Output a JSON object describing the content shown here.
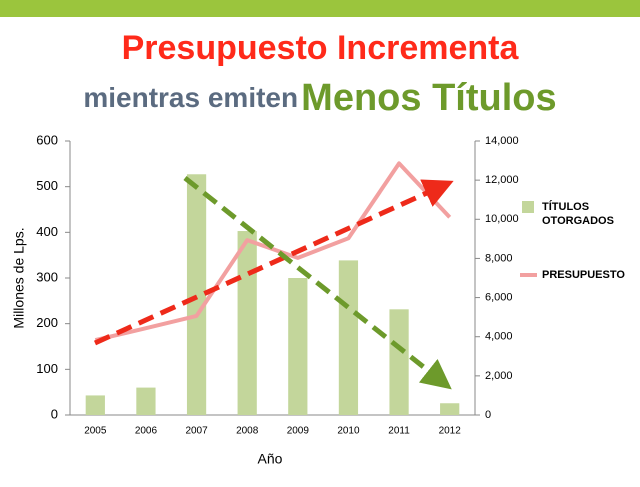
{
  "chart_data": {
    "type": "bar",
    "title": "Presupuesto Incrementa",
    "subtitle": "mientras emiten",
    "subtitle_highlight": "Menos Títulos",
    "x_label": "Año",
    "y_label": "Millones de Lps.",
    "categories": [
      "2005",
      "2006",
      "2007",
      "2008",
      "2009",
      "2010",
      "2011",
      "2012"
    ],
    "series": [
      {
        "name": "TÍTULOS OTORGADOS",
        "type": "bar",
        "axis": "y2",
        "color": "#c3d69b",
        "values": [
          1000,
          1400,
          12300,
          9400,
          7000,
          7900,
          5400,
          600
        ]
      },
      {
        "name": "PRESUPUESTO",
        "type": "line",
        "color": "#f2a0a0",
        "values": [
          164,
          190,
          217,
          383,
          344,
          387,
          551,
          433
        ]
      }
    ],
    "ylim": [
      0,
      600
    ],
    "yticks": [
      0,
      100,
      200,
      300,
      400,
      500,
      600
    ],
    "y2lim": [
      0,
      14000
    ],
    "y2ticks": [
      0,
      {
        "value": 2000,
        "label": "2,000"
      },
      {
        "value": 4000,
        "label": "4,000"
      },
      {
        "value": 6000,
        "label": "6,000"
      },
      {
        "value": 8000,
        "label": "8,000"
      },
      {
        "value": 10000,
        "label": "10,000"
      },
      {
        "value": 12000,
        "label": "12,000"
      },
      {
        "value": 14000,
        "label": "14,000"
      }
    ],
    "grid": false
  }
}
